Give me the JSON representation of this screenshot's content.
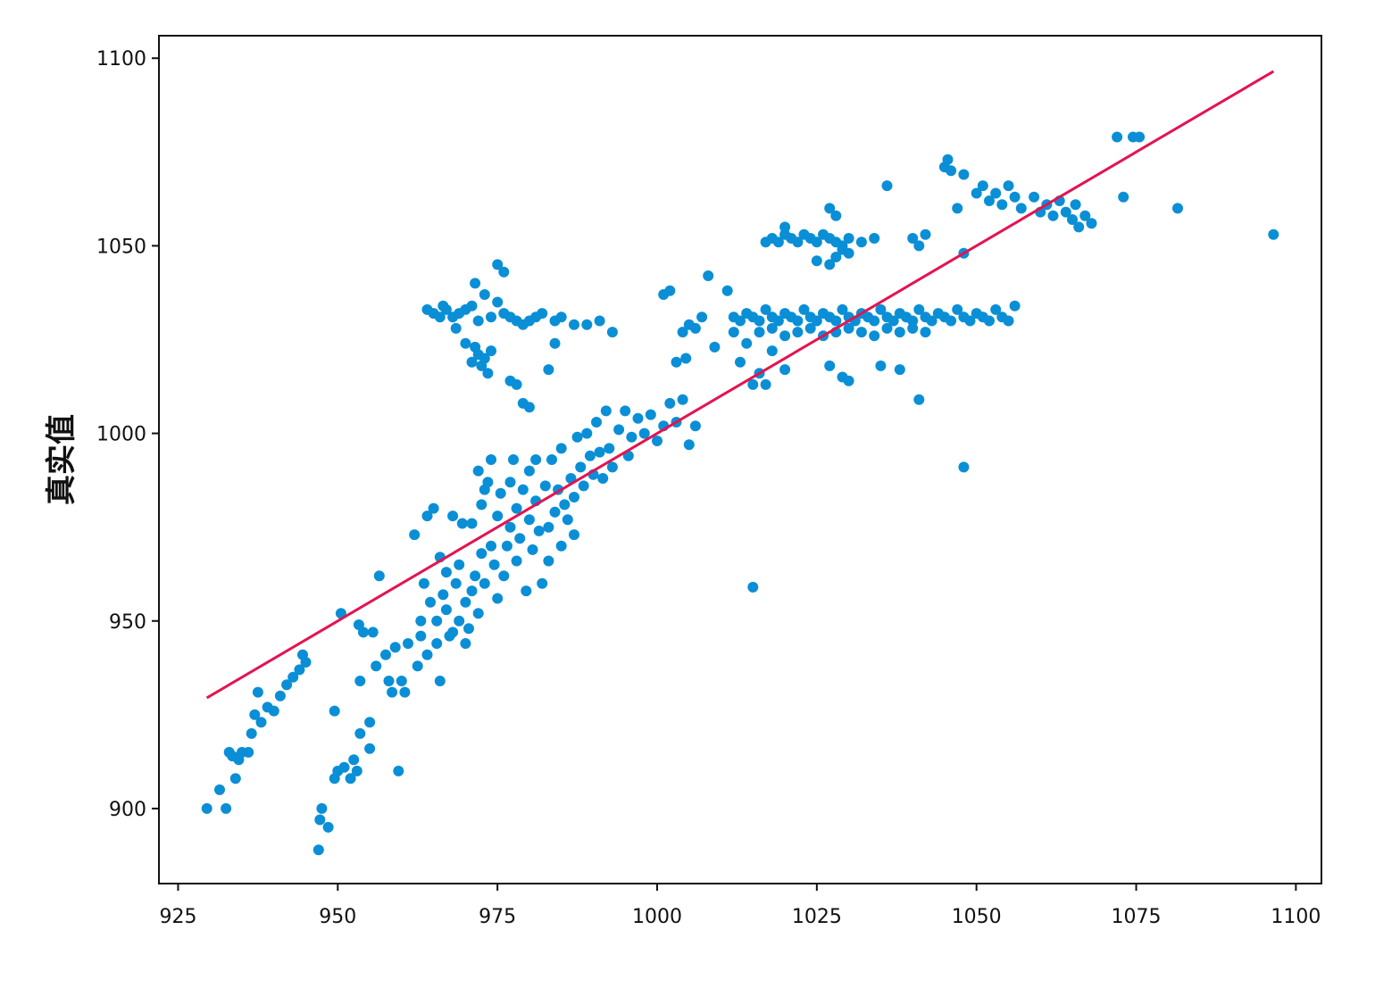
{
  "colors": {
    "points": "#0a8fd6",
    "fit_line": "#e4134f",
    "axes": "#111111",
    "background": "#ffffff"
  },
  "chart_data": {
    "type": "scatter",
    "title": "",
    "xlabel": "",
    "ylabel": "真实值",
    "xlim": [
      922,
      1104
    ],
    "ylim": [
      880,
      1106
    ],
    "x_ticks": [
      925,
      950,
      975,
      1000,
      1025,
      1050,
      1075,
      1100
    ],
    "y_ticks": [
      900,
      950,
      1000,
      1050,
      1100
    ],
    "grid": false,
    "legend": "none",
    "fit_line": {
      "x": [
        929.5,
        1096.5
      ],
      "y": [
        929.5,
        1096.5
      ]
    },
    "points": [
      [
        929.5,
        900
      ],
      [
        931.5,
        905
      ],
      [
        932.5,
        900
      ],
      [
        933,
        915
      ],
      [
        933.5,
        914
      ],
      [
        934,
        908
      ],
      [
        934.5,
        913
      ],
      [
        935,
        915
      ],
      [
        936,
        915
      ],
      [
        936.5,
        920
      ],
      [
        937,
        925
      ],
      [
        937.5,
        931
      ],
      [
        938,
        923
      ],
      [
        939,
        927
      ],
      [
        940,
        926
      ],
      [
        941,
        930
      ],
      [
        942,
        933
      ],
      [
        943,
        935
      ],
      [
        944,
        937
      ],
      [
        944.5,
        941
      ],
      [
        945,
        939
      ],
      [
        947,
        889
      ],
      [
        947.2,
        897
      ],
      [
        947.5,
        900
      ],
      [
        948.5,
        895
      ],
      [
        949.5,
        926
      ],
      [
        949.5,
        908
      ],
      [
        950,
        910
      ],
      [
        950.5,
        952
      ],
      [
        951,
        911
      ],
      [
        952,
        908
      ],
      [
        952.5,
        913
      ],
      [
        953,
        910
      ],
      [
        953.3,
        949
      ],
      [
        953.5,
        934
      ],
      [
        953.5,
        920
      ],
      [
        954,
        947
      ],
      [
        955,
        916
      ],
      [
        955,
        923
      ],
      [
        955.5,
        947
      ],
      [
        956,
        938
      ],
      [
        956.5,
        962
      ],
      [
        957.5,
        941
      ],
      [
        958,
        934
      ],
      [
        958.5,
        931
      ],
      [
        959,
        943
      ],
      [
        959.5,
        910
      ],
      [
        960,
        934
      ],
      [
        960.5,
        931
      ],
      [
        961,
        944
      ],
      [
        962,
        973
      ],
      [
        962.5,
        938
      ],
      [
        963,
        946
      ],
      [
        963,
        950
      ],
      [
        963.5,
        960
      ],
      [
        964,
        941
      ],
      [
        964,
        978
      ],
      [
        964.5,
        955
      ],
      [
        965,
        980
      ],
      [
        965.5,
        944
      ],
      [
        965.5,
        950
      ],
      [
        966,
        967
      ],
      [
        966,
        934
      ],
      [
        966.5,
        957
      ],
      [
        967,
        953
      ],
      [
        967,
        963
      ],
      [
        967.5,
        946
      ],
      [
        968,
        947
      ],
      [
        968,
        978
      ],
      [
        968.5,
        960
      ],
      [
        969,
        950
      ],
      [
        969,
        965
      ],
      [
        969.5,
        976
      ],
      [
        970,
        955
      ],
      [
        970,
        944
      ],
      [
        970.5,
        948
      ],
      [
        971,
        958
      ],
      [
        971,
        976
      ],
      [
        971.5,
        962
      ],
      [
        972,
        952
      ],
      [
        972.5,
        968
      ],
      [
        972,
        990
      ],
      [
        972.5,
        981
      ],
      [
        973,
        985
      ],
      [
        973,
        960
      ],
      [
        973.5,
        987
      ],
      [
        974,
        970
      ],
      [
        974,
        993
      ],
      [
        974.5,
        965
      ],
      [
        975,
        978
      ],
      [
        975,
        956
      ],
      [
        975.5,
        984
      ],
      [
        976,
        962
      ],
      [
        976.5,
        970
      ],
      [
        977,
        975
      ],
      [
        977,
        987
      ],
      [
        977.5,
        993
      ],
      [
        978,
        966
      ],
      [
        978,
        980
      ],
      [
        978.5,
        972
      ],
      [
        979,
        985
      ],
      [
        979.5,
        958
      ],
      [
        980,
        977
      ],
      [
        980,
        990
      ],
      [
        980.5,
        969
      ],
      [
        981,
        982
      ],
      [
        981,
        993
      ],
      [
        981.5,
        974
      ],
      [
        982,
        960
      ],
      [
        982.5,
        986
      ],
      [
        983,
        975
      ],
      [
        983,
        966
      ],
      [
        983.5,
        993
      ],
      [
        984,
        979
      ],
      [
        984.5,
        985
      ],
      [
        985,
        970
      ],
      [
        985,
        996
      ],
      [
        985.5,
        981
      ],
      [
        986,
        977
      ],
      [
        986.5,
        988
      ],
      [
        987,
        983
      ],
      [
        987,
        973
      ],
      [
        987.5,
        999
      ],
      [
        988,
        991
      ],
      [
        988.5,
        986
      ],
      [
        989,
        1000
      ],
      [
        989.5,
        994
      ],
      [
        990,
        989
      ],
      [
        990.5,
        1003
      ],
      [
        991,
        995
      ],
      [
        991.5,
        988
      ],
      [
        992,
        1006
      ],
      [
        992.5,
        996
      ],
      [
        993,
        991
      ],
      [
        994,
        1001
      ],
      [
        995,
        1006
      ],
      [
        995.5,
        994
      ],
      [
        996,
        999
      ],
      [
        997,
        1004
      ],
      [
        998,
        1000
      ],
      [
        999,
        1005
      ],
      [
        1000,
        998
      ],
      [
        1001,
        1002
      ],
      [
        1002,
        1008
      ],
      [
        1003,
        1003
      ],
      [
        1004,
        1009
      ],
      [
        1005,
        997
      ],
      [
        1006,
        1002
      ],
      [
        964,
        1033
      ],
      [
        965,
        1032
      ],
      [
        966,
        1031
      ],
      [
        966.5,
        1034
      ],
      [
        967,
        1033
      ],
      [
        968,
        1031
      ],
      [
        968.5,
        1028
      ],
      [
        969,
        1032
      ],
      [
        970,
        1033
      ],
      [
        971,
        1034
      ],
      [
        971.5,
        1040
      ],
      [
        972,
        1030
      ],
      [
        973,
        1037
      ],
      [
        974,
        1031
      ],
      [
        975,
        1035
      ],
      [
        976,
        1032
      ],
      [
        977,
        1031
      ],
      [
        978,
        1030
      ],
      [
        979,
        1029
      ],
      [
        980,
        1030
      ],
      [
        981,
        1031
      ],
      [
        982,
        1032
      ],
      [
        984,
        1030
      ],
      [
        985,
        1031
      ],
      [
        987,
        1029
      ],
      [
        989,
        1029
      ],
      [
        991,
        1030
      ],
      [
        993,
        1027
      ],
      [
        970,
        1024
      ],
      [
        971,
        1019
      ],
      [
        971.5,
        1023
      ],
      [
        972,
        1021
      ],
      [
        972.5,
        1018
      ],
      [
        973,
        1020
      ],
      [
        973.5,
        1016
      ],
      [
        974,
        1022
      ],
      [
        975,
        1045
      ],
      [
        976,
        1043
      ],
      [
        977,
        1014
      ],
      [
        978,
        1013
      ],
      [
        979,
        1008
      ],
      [
        980,
        1007
      ],
      [
        983,
        1017
      ],
      [
        984,
        1024
      ],
      [
        1001,
        1037
      ],
      [
        1002,
        1038
      ],
      [
        1003,
        1019
      ],
      [
        1004,
        1027
      ],
      [
        1004.5,
        1020
      ],
      [
        1005,
        1029
      ],
      [
        1006,
        1028
      ],
      [
        1007,
        1031
      ],
      [
        1008,
        1042
      ],
      [
        1009,
        1023
      ],
      [
        1011,
        1038
      ],
      [
        1012,
        1027
      ],
      [
        1013,
        1019
      ],
      [
        1014,
        1024
      ],
      [
        1015,
        1013
      ],
      [
        1016,
        1016
      ],
      [
        1017,
        1013
      ],
      [
        1018,
        1022
      ],
      [
        1020,
        1017
      ],
      [
        1027,
        1018
      ],
      [
        1029,
        1015
      ],
      [
        1030,
        1014
      ],
      [
        1035,
        1018
      ],
      [
        1038,
        1017
      ],
      [
        1041,
        1009
      ],
      [
        1048,
        991
      ],
      [
        1015,
        959
      ],
      [
        1012,
        1031
      ],
      [
        1013,
        1030
      ],
      [
        1014,
        1032
      ],
      [
        1015,
        1031
      ],
      [
        1016,
        1030
      ],
      [
        1017,
        1033
      ],
      [
        1018,
        1031
      ],
      [
        1019,
        1030
      ],
      [
        1020,
        1032
      ],
      [
        1021,
        1031
      ],
      [
        1022,
        1030
      ],
      [
        1023,
        1033
      ],
      [
        1024,
        1031
      ],
      [
        1025,
        1030
      ],
      [
        1026,
        1032
      ],
      [
        1027,
        1031
      ],
      [
        1028,
        1030
      ],
      [
        1029,
        1033
      ],
      [
        1030,
        1031
      ],
      [
        1031,
        1030
      ],
      [
        1032,
        1032
      ],
      [
        1033,
        1031
      ],
      [
        1034,
        1030
      ],
      [
        1035,
        1033
      ],
      [
        1036,
        1031
      ],
      [
        1037,
        1030
      ],
      [
        1038,
        1032
      ],
      [
        1039,
        1031
      ],
      [
        1040,
        1030
      ],
      [
        1041,
        1033
      ],
      [
        1042,
        1031
      ],
      [
        1043,
        1030
      ],
      [
        1044,
        1032
      ],
      [
        1045,
        1031
      ],
      [
        1046,
        1030
      ],
      [
        1047,
        1033
      ],
      [
        1048,
        1031
      ],
      [
        1049,
        1030
      ],
      [
        1050,
        1032
      ],
      [
        1051,
        1031
      ],
      [
        1052,
        1030
      ],
      [
        1053,
        1033
      ],
      [
        1054,
        1031
      ],
      [
        1055,
        1030
      ],
      [
        1056,
        1034
      ],
      [
        1016,
        1027
      ],
      [
        1018,
        1028
      ],
      [
        1020,
        1026
      ],
      [
        1022,
        1027
      ],
      [
        1024,
        1028
      ],
      [
        1026,
        1026
      ],
      [
        1028,
        1027
      ],
      [
        1030,
        1028
      ],
      [
        1032,
        1027
      ],
      [
        1034,
        1026
      ],
      [
        1036,
        1028
      ],
      [
        1038,
        1027
      ],
      [
        1040,
        1028
      ],
      [
        1042,
        1027
      ],
      [
        1017,
        1051
      ],
      [
        1018,
        1052
      ],
      [
        1019,
        1051
      ],
      [
        1020,
        1053
      ],
      [
        1021,
        1052
      ],
      [
        1022,
        1051
      ],
      [
        1023,
        1053
      ],
      [
        1024,
        1052
      ],
      [
        1025,
        1051
      ],
      [
        1026,
        1053
      ],
      [
        1027,
        1052
      ],
      [
        1028,
        1051
      ],
      [
        1029,
        1050
      ],
      [
        1030,
        1052
      ],
      [
        1032,
        1051
      ],
      [
        1034,
        1052
      ],
      [
        1020,
        1055
      ],
      [
        1027,
        1060
      ],
      [
        1028,
        1058
      ],
      [
        1025,
        1046
      ],
      [
        1027,
        1045
      ],
      [
        1028,
        1047
      ],
      [
        1029,
        1049
      ],
      [
        1030,
        1048
      ],
      [
        1036,
        1066
      ],
      [
        1040,
        1052
      ],
      [
        1041,
        1050
      ],
      [
        1042,
        1053
      ],
      [
        1045,
        1071
      ],
      [
        1045.5,
        1073
      ],
      [
        1046,
        1070
      ],
      [
        1047,
        1060
      ],
      [
        1048,
        1069
      ],
      [
        1048,
        1048
      ],
      [
        1050,
        1064
      ],
      [
        1051,
        1066
      ],
      [
        1052,
        1062
      ],
      [
        1053,
        1064
      ],
      [
        1054,
        1061
      ],
      [
        1055,
        1066
      ],
      [
        1056,
        1063
      ],
      [
        1057,
        1060
      ],
      [
        1059,
        1063
      ],
      [
        1060,
        1059
      ],
      [
        1061,
        1061
      ],
      [
        1062,
        1058
      ],
      [
        1063,
        1062
      ],
      [
        1064,
        1059
      ],
      [
        1065,
        1057
      ],
      [
        1065.5,
        1061
      ],
      [
        1066,
        1055
      ],
      [
        1067,
        1058
      ],
      [
        1068,
        1056
      ],
      [
        1073,
        1063
      ],
      [
        1072,
        1079
      ],
      [
        1074.5,
        1079
      ],
      [
        1075.5,
        1079
      ],
      [
        1081.5,
        1060
      ],
      [
        1096.5,
        1053
      ]
    ]
  }
}
